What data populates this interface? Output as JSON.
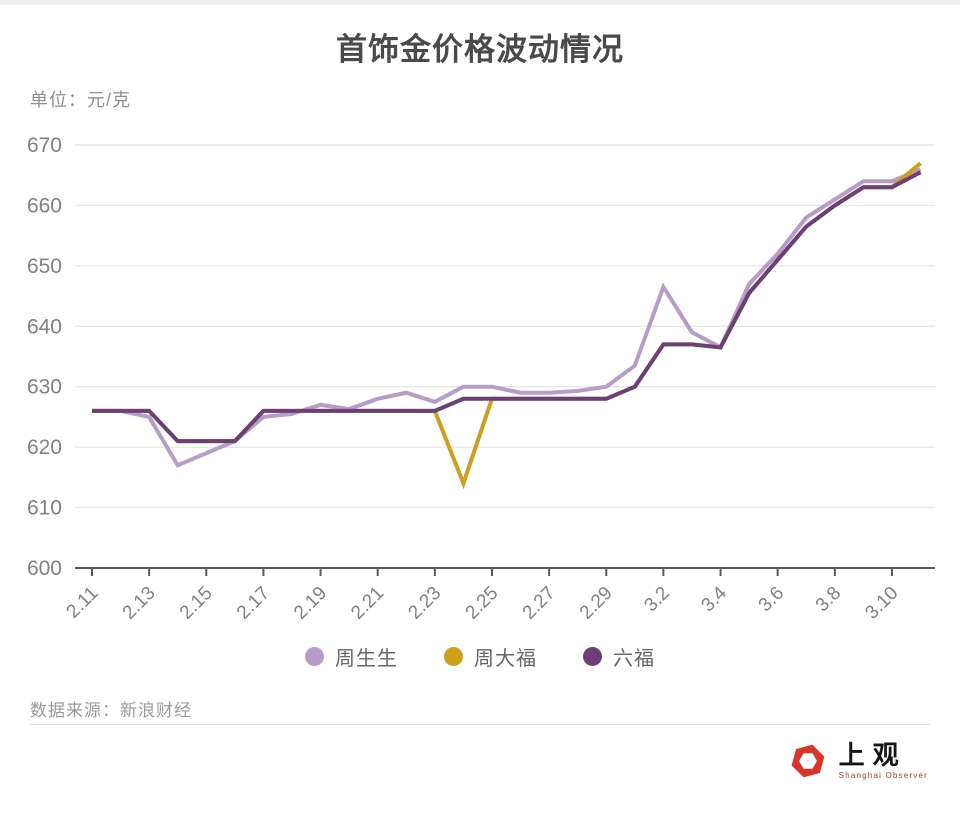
{
  "title": "首饰金价格波动情况",
  "unit_label": "单位：元/克",
  "source": "数据来源：新浪财经",
  "logo": {
    "text": "上观",
    "subtext": "Shanghai Observer",
    "accent_color": "#d8352b"
  },
  "chart_data": {
    "type": "line",
    "title": "首饰金价格波动情况",
    "ylabel": "元/克",
    "xlabel": "",
    "grid": true,
    "legend_position": "bottom",
    "ylim": [
      600,
      670
    ],
    "yticks": [
      600,
      610,
      620,
      630,
      640,
      650,
      660,
      670
    ],
    "x": [
      "2.11",
      "2.12",
      "2.13",
      "2.14",
      "2.15",
      "2.16",
      "2.17",
      "2.18",
      "2.19",
      "2.20",
      "2.21",
      "2.22",
      "2.23",
      "2.24",
      "2.25",
      "2.26",
      "2.27",
      "2.28",
      "2.29",
      "3.1",
      "3.2",
      "3.3",
      "3.4",
      "3.5",
      "3.6",
      "3.7",
      "3.8",
      "3.9",
      "3.10",
      "3.11"
    ],
    "xtick_every": 2,
    "colors": {
      "gridline": "#e7e7e7",
      "axis": "#58585a",
      "tick_text": "#818181"
    },
    "series": [
      {
        "name": "周生生",
        "color": "#b69cc6",
        "values": [
          626,
          626,
          625,
          617,
          619,
          621,
          625,
          625.5,
          627,
          626.3,
          628,
          629,
          627.5,
          630,
          630,
          629,
          629,
          629.3,
          630,
          633.5,
          646.5,
          639,
          636.5,
          647,
          652,
          658,
          661,
          664,
          664,
          666
        ]
      },
      {
        "name": "周大福",
        "color": "#cf9e1b",
        "values": [
          626,
          626,
          626,
          621,
          621,
          621,
          626,
          626,
          626,
          626,
          626,
          626,
          626,
          614,
          628,
          628,
          628,
          628,
          628,
          630,
          637,
          637,
          636.5,
          645.5,
          651,
          656.5,
          660,
          663,
          663,
          667
        ]
      },
      {
        "name": "六福",
        "color": "#6c3f76",
        "values": [
          626,
          626,
          626,
          621,
          621,
          621,
          626,
          626,
          626,
          626,
          626,
          626,
          626,
          628,
          628,
          628,
          628,
          628,
          628,
          630,
          637,
          637,
          636.5,
          645.5,
          651,
          656.5,
          660,
          663,
          663,
          665.5
        ]
      }
    ]
  }
}
